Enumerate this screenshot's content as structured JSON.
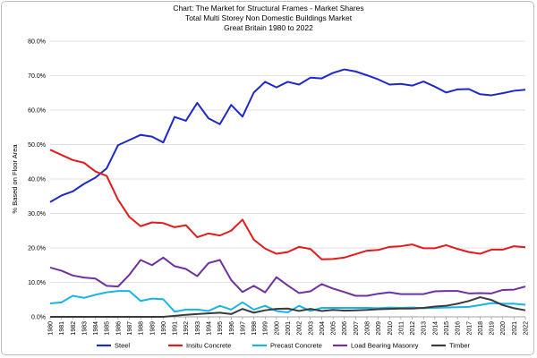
{
  "chart_data": {
    "type": "line",
    "title": "Chart: The Market for Structural Frames - Market Shares",
    "subtitle": "Total Multi Storey Non Domestic Buildings Market",
    "subtitle2": "Great Britain 1980 to 2022",
    "ylabel": "% Based on Floor Area",
    "xlabel": "",
    "ylim": [
      0,
      80
    ],
    "y_ticks": [
      "0.0%",
      "10.0%",
      "20.0%",
      "30.0%",
      "40.0%",
      "50.0%",
      "60.0%",
      "70.0%",
      "80.0%"
    ],
    "grid": true,
    "legend_position": "bottom",
    "x": [
      "1980",
      "1981",
      "1982",
      "1983",
      "1984",
      "1985",
      "1986",
      "1987",
      "1988",
      "1989",
      "1990",
      "1991",
      "1992",
      "1993",
      "1994",
      "1995",
      "1996",
      "1997",
      "1998",
      "1999",
      "2000",
      "2001",
      "2002",
      "2003",
      "2004",
      "2005",
      "2006",
      "2007",
      "2008",
      "2009",
      "2010",
      "2011",
      "2012",
      "2013",
      "2014",
      "2015",
      "2016",
      "2017",
      "2018",
      "2019",
      "2020",
      "2021",
      "2022"
    ],
    "series": [
      {
        "name": "Steel",
        "color": "#1f28c8",
        "values": [
          33.3,
          35.2,
          36.4,
          38.6,
          40.4,
          43.1,
          49.8,
          51.3,
          52.8,
          52.3,
          50.6,
          58.0,
          56.9,
          62.1,
          57.6,
          55.9,
          61.5,
          58.1,
          65.1,
          68.2,
          66.6,
          68.2,
          67.4,
          69.4,
          69.2,
          70.8,
          71.8,
          71.2,
          70.1,
          68.9,
          67.4,
          67.6,
          67.1,
          68.3,
          66.8,
          65.1,
          66.0,
          66.1,
          64.6,
          64.3,
          64.9,
          65.6,
          65.9
        ]
      },
      {
        "name": "Insitu Concrete",
        "color": "#e41a1c",
        "values": [
          48.5,
          47.0,
          45.5,
          44.7,
          42.2,
          40.9,
          34.0,
          29.0,
          26.3,
          27.4,
          27.2,
          26.0,
          26.6,
          23.1,
          24.2,
          23.6,
          25.0,
          28.2,
          22.4,
          19.8,
          18.3,
          18.8,
          20.3,
          19.7,
          16.7,
          16.8,
          17.2,
          18.2,
          19.2,
          19.4,
          20.3,
          20.5,
          21.0,
          19.9,
          19.9,
          20.8,
          19.7,
          18.8,
          18.3,
          19.5,
          19.5,
          20.5,
          20.2
        ]
      },
      {
        "name": "Precast Concrete",
        "color": "#18b4e8",
        "values": [
          3.9,
          4.2,
          6.1,
          5.5,
          6.4,
          7.1,
          7.5,
          7.5,
          4.6,
          5.3,
          5.1,
          1.5,
          2.1,
          2.1,
          1.7,
          3.2,
          2.1,
          4.2,
          2.1,
          3.2,
          1.7,
          1.3,
          3.2,
          1.7,
          2.6,
          2.6,
          2.6,
          2.6,
          2.6,
          2.5,
          2.7,
          2.6,
          2.7,
          2.5,
          2.6,
          2.7,
          2.8,
          2.9,
          3.4,
          4.0,
          3.8,
          3.8,
          3.5
        ]
      },
      {
        "name": "Load Bearing Masonry",
        "color": "#7030a0",
        "values": [
          14.3,
          13.4,
          12.0,
          11.4,
          11.1,
          9.0,
          8.8,
          12.2,
          16.5,
          15.0,
          17.2,
          14.7,
          13.9,
          11.8,
          15.6,
          16.5,
          10.7,
          7.2,
          9.0,
          7.1,
          11.5,
          9.1,
          6.9,
          7.4,
          9.5,
          8.2,
          7.2,
          6.1,
          6.1,
          6.7,
          7.1,
          6.6,
          6.6,
          6.6,
          7.4,
          7.5,
          7.5,
          6.8,
          6.9,
          6.8,
          7.8,
          7.9,
          8.8
        ]
      },
      {
        "name": "Timber",
        "color": "#3a3a3a",
        "values": [
          0,
          0,
          0,
          0,
          0,
          0,
          0,
          0,
          0,
          0,
          0,
          0.3,
          0.6,
          0.8,
          1.0,
          1.2,
          0.8,
          2.3,
          1.2,
          1.9,
          2.3,
          2.4,
          1.7,
          2.3,
          1.7,
          2.0,
          1.8,
          1.9,
          2.0,
          2.2,
          2.3,
          2.4,
          2.4,
          2.6,
          3.0,
          3.2,
          3.8,
          4.6,
          5.7,
          4.9,
          3.4,
          2.5,
          1.9
        ]
      }
    ]
  }
}
